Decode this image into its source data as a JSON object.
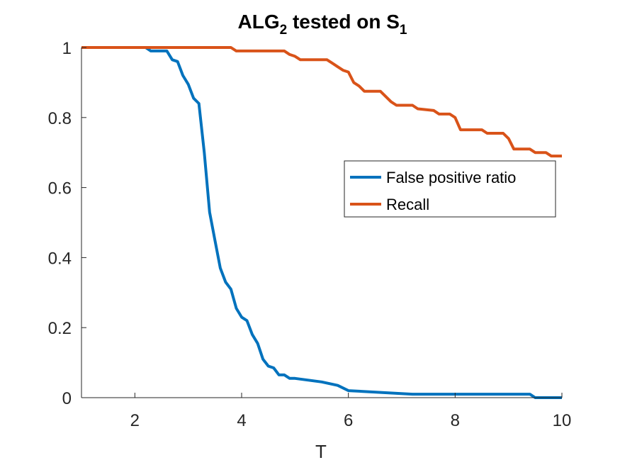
{
  "chart_data": {
    "type": "line",
    "title": {
      "prefix": "ALG",
      "sub1": "2",
      "middle": " tested on S",
      "sub2": "1"
    },
    "xlabel": "T",
    "ylabel": "",
    "xlim": [
      1,
      10
    ],
    "ylim": [
      0,
      1
    ],
    "xticks": [
      2,
      4,
      6,
      8,
      10
    ],
    "yticks": [
      0,
      0.2,
      0.4,
      0.6,
      0.8,
      1
    ],
    "xtick_labels": [
      "2",
      "4",
      "6",
      "8",
      "10"
    ],
    "ytick_labels": [
      "0",
      "0.2",
      "0.4",
      "0.6",
      "0.8",
      "1"
    ],
    "grid": false,
    "legend_position": "right",
    "series": [
      {
        "name": "False positive ratio",
        "color": "#0072BD",
        "x": [
          1,
          2.2,
          2.3,
          2.6,
          2.7,
          2.8,
          2.9,
          3.0,
          3.1,
          3.2,
          3.3,
          3.4,
          3.5,
          3.6,
          3.7,
          3.8,
          3.9,
          4.0,
          4.1,
          4.2,
          4.3,
          4.4,
          4.5,
          4.6,
          4.7,
          4.8,
          4.9,
          5.0,
          5.5,
          5.8,
          6.0,
          7.2,
          9.4,
          9.5,
          10
        ],
        "y": [
          1,
          1,
          0.99,
          0.99,
          0.965,
          0.96,
          0.92,
          0.895,
          0.855,
          0.84,
          0.7,
          0.53,
          0.45,
          0.37,
          0.33,
          0.31,
          0.255,
          0.23,
          0.22,
          0.18,
          0.155,
          0.11,
          0.09,
          0.085,
          0.065,
          0.065,
          0.055,
          0.055,
          0.045,
          0.035,
          0.02,
          0.01,
          0.01,
          0.0,
          0.0
        ]
      },
      {
        "name": "Recall",
        "color": "#D95319",
        "x": [
          1,
          3.8,
          3.9,
          4.8,
          4.9,
          5.0,
          5.1,
          5.6,
          5.7,
          5.8,
          5.9,
          6.0,
          6.1,
          6.2,
          6.3,
          6.6,
          6.7,
          6.8,
          6.9,
          7.2,
          7.3,
          7.6,
          7.7,
          7.9,
          8.0,
          8.1,
          8.5,
          8.6,
          8.9,
          9.0,
          9.1,
          9.4,
          9.5,
          9.7,
          9.8,
          10
        ],
        "y": [
          1,
          1,
          0.99,
          0.99,
          0.98,
          0.975,
          0.965,
          0.965,
          0.955,
          0.945,
          0.935,
          0.93,
          0.9,
          0.89,
          0.875,
          0.875,
          0.86,
          0.845,
          0.835,
          0.835,
          0.825,
          0.82,
          0.81,
          0.81,
          0.8,
          0.765,
          0.765,
          0.755,
          0.755,
          0.74,
          0.71,
          0.71,
          0.7,
          0.7,
          0.69,
          0.69
        ]
      }
    ]
  }
}
